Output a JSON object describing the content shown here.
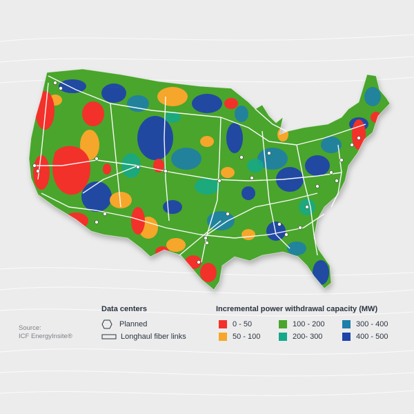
{
  "source": {
    "line1": "Source:",
    "line2": "ICF EnergyInsite®"
  },
  "legend_data_centers": {
    "title": "Data centers",
    "planned": "Planned",
    "fiber": "Longhaul fiber links"
  },
  "legend_capacity": {
    "title": "Incremental power withdrawal capacity (MW)",
    "items": [
      {
        "label": "0 - 50",
        "color": "#f2312a"
      },
      {
        "label": "50 - 100",
        "color": "#f6a62a"
      },
      {
        "label": "100 - 200",
        "color": "#4aa52c"
      },
      {
        "label": "200- 300",
        "color": "#14a98a"
      },
      {
        "label": "300 - 400",
        "color": "#1e7fa8"
      },
      {
        "label": "400 - 500",
        "color": "#1f44a8"
      }
    ]
  }
}
